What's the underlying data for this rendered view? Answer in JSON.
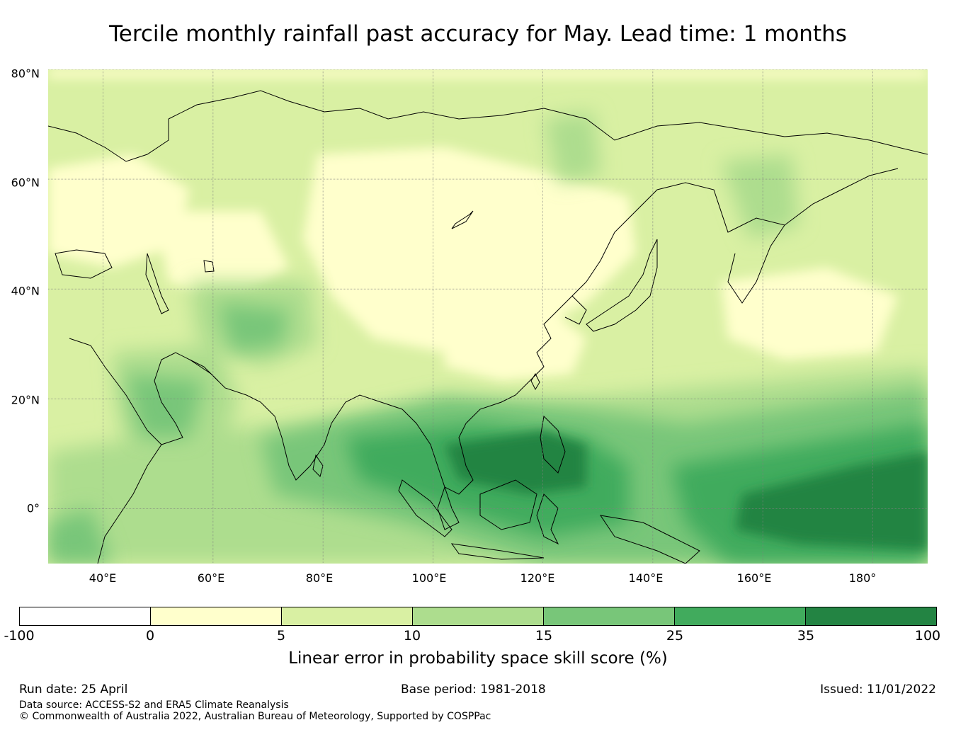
{
  "title": "Tercile monthly rainfall past accuracy for May. Lead time: 1 months",
  "map": {
    "lat_labels": [
      "80°N",
      "60°N",
      "40°N",
      "20°N",
      "0°"
    ],
    "lon_labels": [
      "40°E",
      "60°E",
      "80°E",
      "100°E",
      "120°E",
      "140°E",
      "160°E",
      "180°"
    ],
    "lat_range": [
      -10,
      80
    ],
    "lon_range": [
      30,
      190
    ]
  },
  "colorbar": {
    "ticks": [
      "-100",
      "0",
      "5",
      "10",
      "15",
      "25",
      "35",
      "100"
    ],
    "colors": [
      "#ffffff",
      "#ffffcc",
      "#d9f0a3",
      "#addd8e",
      "#78c679",
      "#41ab5d",
      "#238443"
    ],
    "label": "Linear error in probability space skill score (%)"
  },
  "footer": {
    "run_date": "Run date: 25 April",
    "base_period": "Base period: 1981-2018",
    "issued": "Issued: 11/01/2022",
    "data_source": "Data source: ACCESS-S2 and ERA5 Climate Reanalysis",
    "copyright": "© Commonwealth of Australia 2022, Australian Bureau of Meteorology, Supported by COSPPac"
  }
}
